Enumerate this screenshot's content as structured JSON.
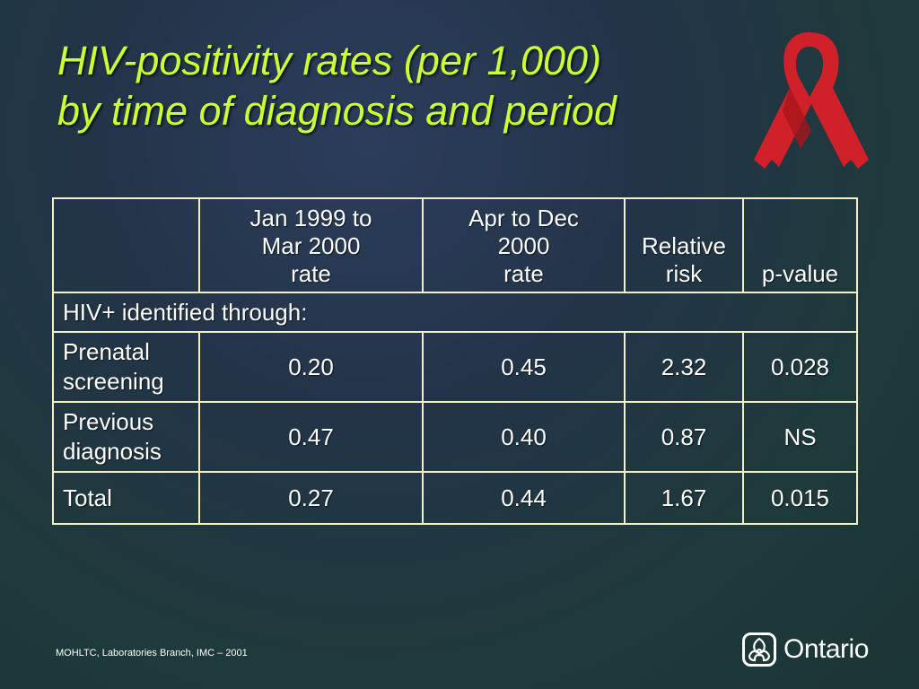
{
  "slide": {
    "title_line1": "HIV-positivity rates (per 1,000)",
    "title_line2": "by time of diagnosis and period",
    "colors": {
      "title": "#ccff33",
      "ribbon": "#d0202a",
      "table_border": "#f2f0c8"
    },
    "icons": {
      "ribbon": "red-ribbon-icon",
      "trillium": "trillium-logo-icon"
    }
  },
  "table": {
    "headers": [
      {
        "lines": []
      },
      {
        "lines": [
          "Jan 1999 to",
          "Mar 2000",
          "rate"
        ]
      },
      {
        "lines": [
          "Apr to Dec",
          "2000",
          "rate"
        ]
      },
      {
        "lines": [
          "Relative",
          "risk"
        ]
      },
      {
        "lines": [
          "p-value"
        ]
      }
    ],
    "section_label": "HIV+ identified through:",
    "rows": [
      {
        "label_lines": [
          "Prenatal",
          "screening"
        ],
        "values": [
          "0.20",
          "0.45",
          "2.32",
          "0.028"
        ]
      },
      {
        "label_lines": [
          "Previous",
          "diagnosis"
        ],
        "values": [
          "0.47",
          "0.40",
          "0.87",
          "NS"
        ]
      },
      {
        "label_lines": [
          "Total"
        ],
        "values": [
          "0.27",
          "0.44",
          "1.67",
          "0.015"
        ]
      }
    ]
  },
  "footer": {
    "source": "MOHLTC, Laboratories Branch, IMC – 2001",
    "logo_text": "Ontario"
  }
}
